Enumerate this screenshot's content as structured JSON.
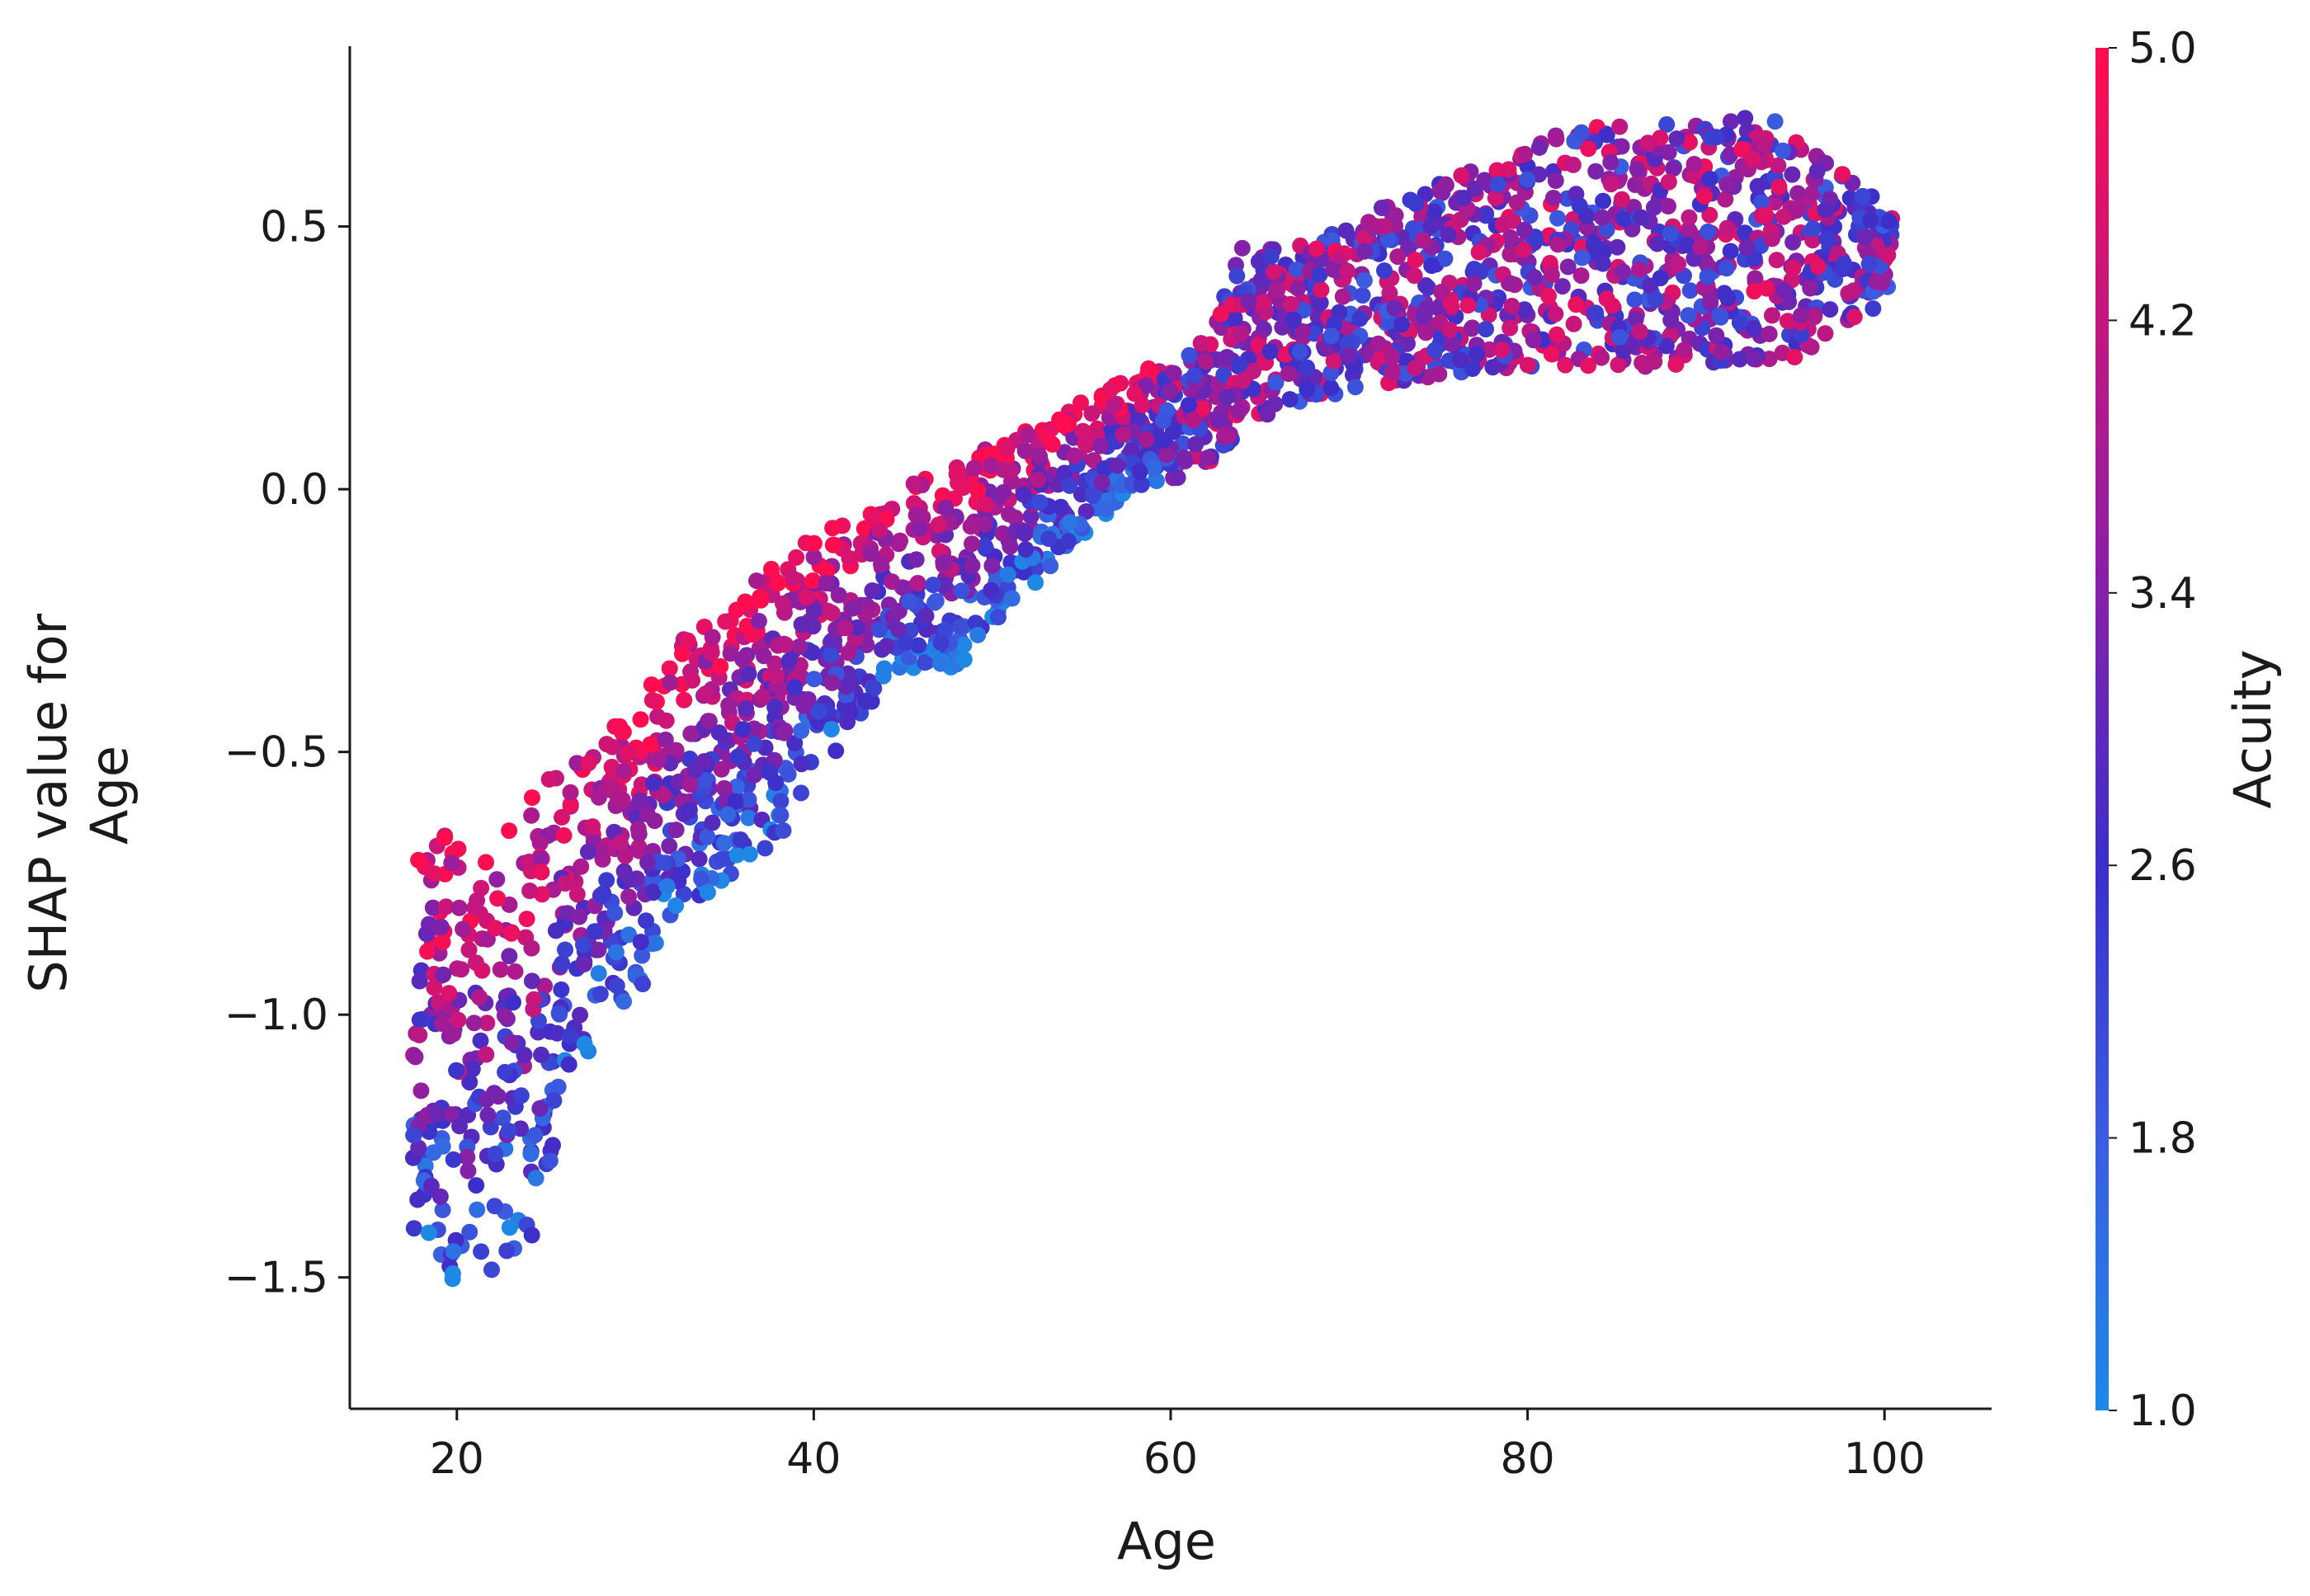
{
  "chart_data": {
    "type": "scatter",
    "title": "",
    "xlabel": "Age",
    "ylabel": "SHAP value for\nAge",
    "xlim": [
      14,
      106
    ],
    "ylim": [
      -1.75,
      0.84
    ],
    "x_ticks": [
      20,
      40,
      60,
      80,
      100
    ],
    "y_ticks": [
      0.5,
      0.0,
      -0.5,
      -1.0,
      -1.5
    ],
    "x_tick_labels": [
      "20",
      "40",
      "60",
      "80",
      "100"
    ],
    "y_tick_labels": [
      "0.5",
      "0.0",
      "−0.5",
      "−1.0",
      "−1.5"
    ],
    "grid": false,
    "colorbar": {
      "label": "Acuity",
      "min": 1.0,
      "max": 5.0,
      "ticks": [
        1.0,
        1.8,
        2.6,
        3.4,
        4.2,
        5.0
      ],
      "tick_labels": [
        "1.0",
        "1.8",
        "2.6",
        "3.4",
        "4.2",
        "5.0"
      ],
      "colors": [
        "#1e88e5",
        "#3b5de0",
        "#3c2fc9",
        "#8421a8",
        "#c21780",
        "#ff0d4f"
      ]
    },
    "envelope": {
      "x": [
        18,
        20,
        22,
        24,
        26,
        28,
        30,
        32,
        34,
        36,
        38,
        40,
        42,
        44,
        46,
        48,
        50,
        52,
        54,
        56,
        58,
        60,
        62,
        64,
        66,
        68,
        70,
        72,
        74,
        76,
        78,
        80,
        82,
        84,
        86,
        88,
        90,
        92,
        94,
        96,
        98,
        100
      ],
      "lower": [
        -1.42,
        -1.52,
        -1.52,
        -1.42,
        -1.18,
        -1.02,
        -0.98,
        -0.82,
        -0.78,
        -0.72,
        -0.66,
        -0.52,
        -0.5,
        -0.36,
        -0.34,
        -0.34,
        -0.26,
        -0.18,
        -0.12,
        -0.06,
        0.0,
        0.02,
        0.04,
        0.12,
        0.16,
        0.17,
        0.19,
        0.2,
        0.21,
        0.22,
        0.23,
        0.23,
        0.23,
        0.24,
        0.23,
        0.23,
        0.24,
        0.24,
        0.24,
        0.26,
        0.3,
        0.38
      ],
      "upper": [
        -0.66,
        -0.65,
        -0.64,
        -0.58,
        -0.52,
        -0.46,
        -0.42,
        -0.32,
        -0.24,
        -0.2,
        -0.14,
        -0.1,
        -0.04,
        -0.02,
        0.02,
        0.05,
        0.08,
        0.12,
        0.15,
        0.19,
        0.22,
        0.24,
        0.3,
        0.46,
        0.47,
        0.48,
        0.5,
        0.54,
        0.57,
        0.6,
        0.62,
        0.65,
        0.68,
        0.7,
        0.69,
        0.7,
        0.7,
        0.71,
        0.7,
        0.66,
        0.6,
        0.52
      ]
    },
    "point_count": 2400
  }
}
